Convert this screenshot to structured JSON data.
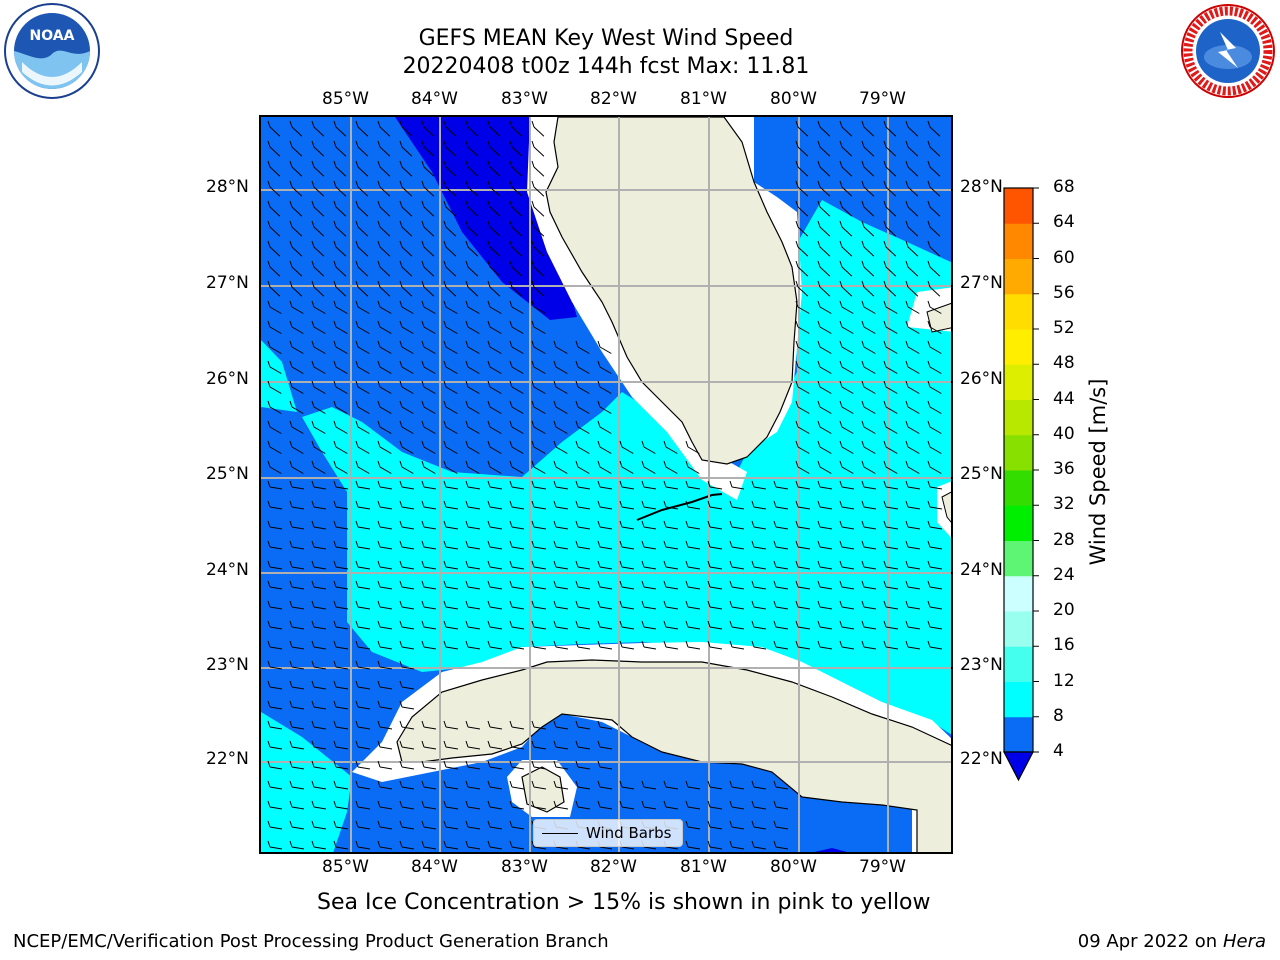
{
  "title": {
    "line1": "GEFS MEAN Key West Wind Speed",
    "line2": "20220408 t00z 144h fcst   Max: 11.81"
  },
  "logos": {
    "left": "noaa-logo",
    "right": "national-weather-service-logo",
    "left_text": "NOAA",
    "right_text": "NATIONAL WEATHER SERVICE"
  },
  "map": {
    "lon_labels": [
      "85°W",
      "84°W",
      "83°W",
      "82°W",
      "81°W",
      "80°W",
      "79°W"
    ],
    "lat_labels": [
      "28°N",
      "27°N",
      "26°N",
      "25°N",
      "24°N",
      "23°N",
      "22°N"
    ],
    "lon_range": [
      -86.0,
      -78.3
    ],
    "lat_range": [
      21.0,
      28.8
    ],
    "land_color": "#eeeedd",
    "wind_color_dark": "#0000e8",
    "wind_color_mid": "#0a6cf5",
    "wind_color_light": "#00ffff",
    "legend_label": "Wind Barbs"
  },
  "colorbar": {
    "label": "Wind Speed [m/s]",
    "ticks": [
      "4",
      "8",
      "12",
      "16",
      "20",
      "24",
      "28",
      "32",
      "36",
      "40",
      "44",
      "48",
      "52",
      "56",
      "60",
      "64",
      "68"
    ],
    "colors": [
      "#0a6cf5",
      "#00ffff",
      "#44ffee",
      "#99ffee",
      "#ccffff",
      "#5ef575",
      "#00ee00",
      "#33dd00",
      "#88e000",
      "#b8e800",
      "#ddee00",
      "#ffee00",
      "#ffdd00",
      "#ffaa00",
      "#ff8800",
      "#ff5500",
      "#ff2200",
      "#ff0000"
    ],
    "under_color": "#0000e8"
  },
  "footnote": "Sea Ice Concentration > 15% is shown in pink to yellow",
  "credit": "NCEP/EMC/Verification Post Processing Product Generation Branch",
  "date_prefix": "09 Apr 2022 on ",
  "date_machine": "Hera"
}
